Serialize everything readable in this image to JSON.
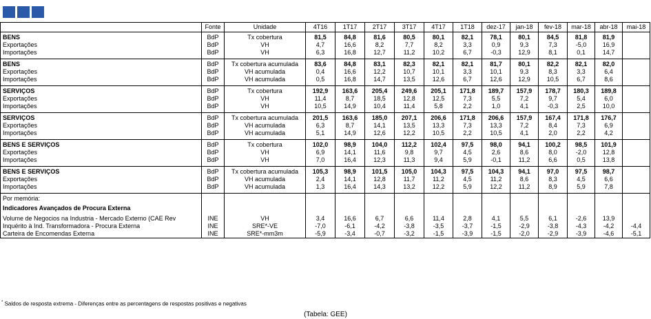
{
  "header": {
    "fonte": "Fonte",
    "unidade": "Unidade",
    "periods": [
      "4T16",
      "1T17",
      "2T17",
      "3T17",
      "4T17",
      "1T18",
      "dez-17",
      "jan-18",
      "fev-18",
      "mar-18",
      "abr-18",
      "mai-18"
    ]
  },
  "groups": [
    {
      "rows": [
        {
          "label": "BENS",
          "src": "BdP",
          "unit": "Tx cobertura",
          "values": [
            "81,5",
            "84,8",
            "81,6",
            "80,5",
            "80,1",
            "82,1",
            "78,1",
            "80,1",
            "84,5",
            "81,8",
            "81,9",
            ""
          ]
        },
        {
          "label": "Exportações",
          "src": "BdP",
          "unit": "VH",
          "values": [
            "4,7",
            "16,6",
            "8,2",
            "7,7",
            "8,2",
            "3,3",
            "0,9",
            "9,3",
            "7,3",
            "-5,0",
            "16,9",
            ""
          ]
        },
        {
          "label": "Importações",
          "src": "BdP",
          "unit": "VH",
          "values": [
            "6,3",
            "16,8",
            "12,7",
            "11,2",
            "10,2",
            "6,7",
            "-0,3",
            "12,9",
            "8,1",
            "0,1",
            "14,7",
            ""
          ]
        }
      ]
    },
    {
      "rows": [
        {
          "label": "BENS",
          "src": "BdP",
          "unit": "Tx cobertura acumulada",
          "values": [
            "83,6",
            "84,8",
            "83,1",
            "82,3",
            "82,1",
            "82,1",
            "81,7",
            "80,1",
            "82,2",
            "82,1",
            "82,0",
            ""
          ]
        },
        {
          "label": "Exportações",
          "src": "BdP",
          "unit": "VH acumulada",
          "values": [
            "0,4",
            "16,6",
            "12,2",
            "10,7",
            "10,1",
            "3,3",
            "10,1",
            "9,3",
            "8,3",
            "3,3",
            "6,4",
            ""
          ]
        },
        {
          "label": "Importações",
          "src": "BdP",
          "unit": "VH acumulada",
          "values": [
            "0,5",
            "16,8",
            "14,7",
            "13,5",
            "12,6",
            "6,7",
            "12,6",
            "12,9",
            "10,5",
            "6,7",
            "8,6",
            ""
          ]
        }
      ]
    },
    {
      "rows": [
        {
          "label": "SERVIÇOS",
          "src": "BdP",
          "unit": "Tx cobertura",
          "values": [
            "192,9",
            "163,6",
            "205,4",
            "249,6",
            "205,1",
            "171,8",
            "189,7",
            "157,9",
            "178,7",
            "180,3",
            "189,8",
            ""
          ]
        },
        {
          "label": "Exportações",
          "src": "BdP",
          "unit": "VH",
          "values": [
            "11,4",
            "8,7",
            "18,5",
            "12,8",
            "12,5",
            "7,3",
            "5,5",
            "7,2",
            "9,7",
            "5,4",
            "6,0",
            ""
          ]
        },
        {
          "label": "Importações",
          "src": "BdP",
          "unit": "VH",
          "values": [
            "10,5",
            "14,9",
            "10,4",
            "11,4",
            "5,8",
            "2,2",
            "1,0",
            "4,1",
            "-0,3",
            "2,5",
            "10,0",
            ""
          ]
        }
      ]
    },
    {
      "rows": [
        {
          "label": "SERVIÇOS",
          "src": "BdP",
          "unit": "Tx cobertura acumulada",
          "values": [
            "201,5",
            "163,6",
            "185,0",
            "207,1",
            "206,6",
            "171,8",
            "206,6",
            "157,9",
            "167,4",
            "171,8",
            "176,7",
            ""
          ]
        },
        {
          "label": "Exportações",
          "src": "BdP",
          "unit": "VH acumulada",
          "values": [
            "6,3",
            "8,7",
            "14,1",
            "13,5",
            "13,3",
            "7,3",
            "13,3",
            "7,2",
            "8,4",
            "7,3",
            "6,9",
            ""
          ]
        },
        {
          "label": "Importações",
          "src": "BdP",
          "unit": "VH acumulada",
          "values": [
            "5,1",
            "14,9",
            "12,6",
            "12,2",
            "10,5",
            "2,2",
            "10,5",
            "4,1",
            "2,0",
            "2,2",
            "4,2",
            ""
          ]
        }
      ]
    },
    {
      "rows": [
        {
          "label": "BENS E SERVIÇOS",
          "src": "BdP",
          "unit": "Tx cobertura",
          "values": [
            "102,0",
            "98,9",
            "104,0",
            "112,2",
            "102,4",
            "97,5",
            "98,0",
            "94,1",
            "100,2",
            "98,5",
            "101,9",
            ""
          ]
        },
        {
          "label": "Exportações",
          "src": "BdP",
          "unit": "VH",
          "values": [
            "6,9",
            "14,1",
            "11,6",
            "9,8",
            "9,7",
            "4,5",
            "2,6",
            "8,6",
            "8,0",
            "-2,0",
            "12,8",
            ""
          ]
        },
        {
          "label": "Importações",
          "src": "BdP",
          "unit": "VH",
          "values": [
            "7,0",
            "16,4",
            "12,3",
            "11,3",
            "9,4",
            "5,9",
            "-0,1",
            "11,2",
            "6,6",
            "0,5",
            "13,8",
            ""
          ]
        }
      ]
    },
    {
      "rows": [
        {
          "label": "BENS E SERVIÇOS",
          "src": "BdP",
          "unit": "Tx cobertura acumulada",
          "values": [
            "105,3",
            "98,9",
            "101,5",
            "105,0",
            "104,3",
            "97,5",
            "104,3",
            "94,1",
            "97,0",
            "97,5",
            "98,7",
            ""
          ]
        },
        {
          "label": "Exportações",
          "src": "BdP",
          "unit": "VH acumulada",
          "values": [
            "2,4",
            "14,1",
            "12,8",
            "11,7",
            "11,2",
            "4,5",
            "11,2",
            "8,6",
            "8,3",
            "4,5",
            "6,6",
            ""
          ]
        },
        {
          "label": "Importações",
          "src": "BdP",
          "unit": "VH acumulada",
          "values": [
            "1,3",
            "16,4",
            "14,3",
            "13,2",
            "12,2",
            "5,9",
            "12,2",
            "11,2",
            "8,9",
            "5,9",
            "7,8",
            ""
          ]
        }
      ]
    }
  ],
  "memo": {
    "por_memoria": "Por memória:",
    "title": "Indicadores Avançados de Procura Externa",
    "rows": [
      {
        "label": "Volume de Negocios na Industria - Mercado Externo (CAE Rev",
        "src": "INE",
        "unit": "VH",
        "values": [
          "3,4",
          "16,6",
          "6,7",
          "6,6",
          "11,4",
          "2,8",
          "4,1",
          "5,5",
          "6,1",
          "-2,6",
          "13,9",
          ""
        ]
      },
      {
        "label": "Inquérito à Ind. Transformadora - Procura Externa",
        "src": "INE",
        "unit": "SRE*-VE",
        "values": [
          "-7,0",
          "-6,1",
          "-4,2",
          "-3,8",
          "-3,5",
          "-3,7",
          "-1,5",
          "-2,9",
          "-3,8",
          "-4,3",
          "-4,2",
          "-4,4"
        ]
      },
      {
        "label": "Carteira de Encomendas Externa",
        "src": "INE",
        "unit": "SRE*-mm3m",
        "values": [
          "-5,9",
          "-3,4",
          "-0,7",
          "-3,2",
          "-1,5",
          "-3,9",
          "-1,5",
          "-2,0",
          "-2,9",
          "-3,9",
          "-4,6",
          "-5,1"
        ]
      }
    ]
  },
  "footnote": {
    "mark": "*",
    "text": " Saldos de resposta extrema - Diferenças entre as percentagens de respostas positivas e negativas"
  },
  "source_note": "(Tabela: GEE)"
}
